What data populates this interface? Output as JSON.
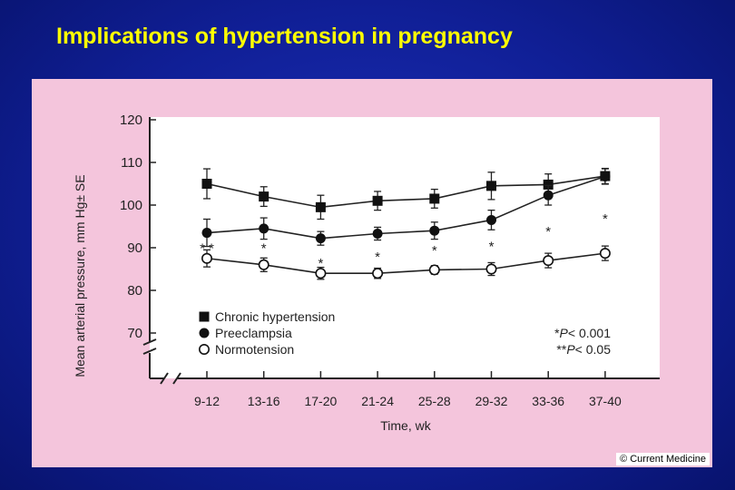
{
  "slide": {
    "title": "Implications of hypertension in pregnancy",
    "credit": "© Current Medicine"
  },
  "chart_data": {
    "type": "line",
    "title": "",
    "xlabel": "Time, wk",
    "ylabel": "Mean arterial pressure, mm Hg± SE",
    "categories": [
      "9-12",
      "13-16",
      "17-20",
      "21-24",
      "25-28",
      "29-32",
      "33-36",
      "37-40"
    ],
    "yticks": [
      70,
      80,
      90,
      100,
      110,
      120
    ],
    "ylim": [
      65,
      120
    ],
    "axis_break": true,
    "grid": false,
    "legend_position": "bottom-left",
    "series": [
      {
        "name": "Chronic hypertension",
        "marker": "filled-square",
        "values": [
          105,
          102,
          99.5,
          101,
          101.5,
          104.5,
          104.8,
          106.8
        ],
        "errors": [
          3.5,
          2.3,
          2.8,
          2.2,
          2.2,
          3.2,
          2.5,
          1.8
        ]
      },
      {
        "name": "Preeclampsia",
        "marker": "filled-circle",
        "values": [
          93.5,
          94.5,
          92.2,
          93.3,
          94.0,
          96.5,
          102.3,
          106.7
        ],
        "errors": [
          3.2,
          2.5,
          1.6,
          1.5,
          2.0,
          2.3,
          2.3,
          1.8
        ]
      },
      {
        "name": "Normotension",
        "marker": "open-circle",
        "values": [
          87.5,
          86.0,
          84.0,
          84.0,
          84.8,
          85.0,
          87.0,
          88.7
        ],
        "errors": [
          2.0,
          1.6,
          1.4,
          1.2,
          1.0,
          1.5,
          1.7,
          1.7
        ]
      }
    ],
    "annotations": [
      {
        "label": "**",
        "category_index": 0,
        "y": 90.5
      },
      {
        "label": "*",
        "category_index": 1,
        "y": 90.5
      },
      {
        "label": "*",
        "category_index": 2,
        "y": 87.0
      },
      {
        "label": "*",
        "category_index": 3,
        "y": 88.5
      },
      {
        "label": "*",
        "category_index": 4,
        "y": 90.0
      },
      {
        "label": "*",
        "category_index": 5,
        "y": 91.0
      },
      {
        "label": "*",
        "category_index": 6,
        "y": 94.5
      },
      {
        "label": "*",
        "category_index": 7,
        "y": 97.5
      }
    ],
    "significance_notes": [
      {
        "stars": "*",
        "text": "P< 0.001"
      },
      {
        "stars": "**",
        "text": "P< 0.05"
      }
    ]
  }
}
